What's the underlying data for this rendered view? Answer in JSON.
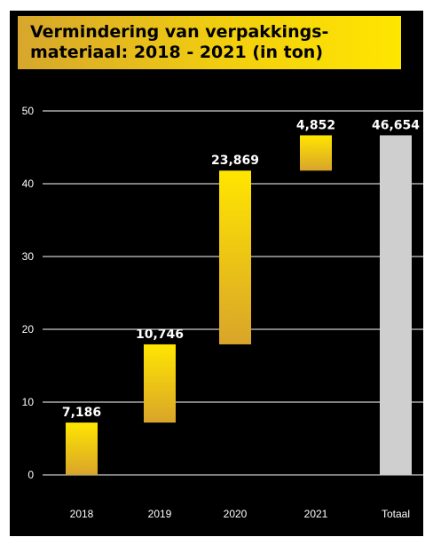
{
  "chart_data": {
    "type": "bar",
    "subtype": "waterfall",
    "title": "Vermindering van verpakkings-\nmateriaal: 2018 - 2021 (in ton)",
    "categories": [
      "2018",
      "2019",
      "2020",
      "2021",
      "Totaal"
    ],
    "values": [
      7.186,
      10.746,
      23.869,
      4.852,
      46.654
    ],
    "data_labels": [
      "7,186",
      "10,746",
      "23,869",
      "4,852",
      "46,654"
    ],
    "total_index": 4,
    "ylim": [
      0,
      50
    ],
    "yticks": [
      "0",
      "10",
      "20",
      "30",
      "40",
      "50"
    ],
    "grid": true,
    "xlabel": "",
    "ylabel": ""
  },
  "colors": {
    "background": "#000000",
    "bar_top": "#ffe600",
    "bar_bottom": "#d9a42a",
    "total_bar": "#cfcfcf",
    "gridline": "#ffffff",
    "text": "#ffffff",
    "title_text": "#000000"
  }
}
